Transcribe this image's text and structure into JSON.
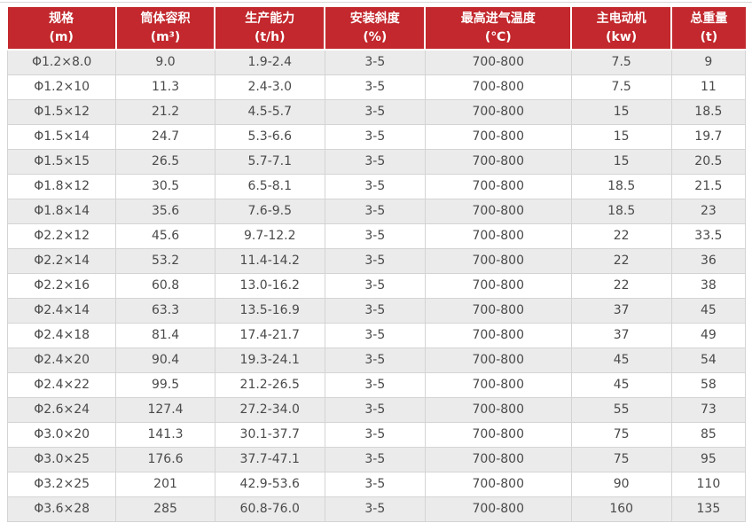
{
  "theme": {
    "header_bg": "#c2282d",
    "header_text": "#ffffff",
    "row_stripe": "#ebebeb",
    "row_plain": "#ffffff",
    "grid_line": "#d4d4d4",
    "body_text": "#4a4a4a",
    "top_divider": "#d8d8d8"
  },
  "chart_data": {
    "type": "table",
    "columns": [
      {
        "label": "规格",
        "unit": "(m)"
      },
      {
        "label": "筒体容积",
        "unit": "(m³)"
      },
      {
        "label": "生产能力",
        "unit": "(t/h)"
      },
      {
        "label": "安装斜度",
        "unit": "(%)"
      },
      {
        "label": "最高进气温度",
        "unit": "(℃)"
      },
      {
        "label": "主电动机",
        "unit": "(kw)"
      },
      {
        "label": "总重量",
        "unit": "(t)"
      }
    ],
    "rows": [
      [
        "Φ1.2×8.0",
        "9.0",
        "1.9-2.4",
        "3-5",
        "700-800",
        "7.5",
        "9"
      ],
      [
        "Φ1.2×10",
        "11.3",
        "2.4-3.0",
        "3-5",
        "700-800",
        "7.5",
        "11"
      ],
      [
        "Φ1.5×12",
        "21.2",
        "4.5-5.7",
        "3-5",
        "700-800",
        "15",
        "18.5"
      ],
      [
        "Φ1.5×14",
        "24.7",
        "5.3-6.6",
        "3-5",
        "700-800",
        "15",
        "19.7"
      ],
      [
        "Φ1.5×15",
        "26.5",
        "5.7-7.1",
        "3-5",
        "700-800",
        "15",
        "20.5"
      ],
      [
        "Φ1.8×12",
        "30.5",
        "6.5-8.1",
        "3-5",
        "700-800",
        "18.5",
        "21.5"
      ],
      [
        "Φ1.8×14",
        "35.6",
        "7.6-9.5",
        "3-5",
        "700-800",
        "18.5",
        "23"
      ],
      [
        "Φ2.2×12",
        "45.6",
        "9.7-12.2",
        "3-5",
        "700-800",
        "22",
        "33.5"
      ],
      [
        "Φ2.2×14",
        "53.2",
        "11.4-14.2",
        "3-5",
        "700-800",
        "22",
        "36"
      ],
      [
        "Φ2.2×16",
        "60.8",
        "13.0-16.2",
        "3-5",
        "700-800",
        "22",
        "38"
      ],
      [
        "Φ2.4×14",
        "63.3",
        "13.5-16.9",
        "3-5",
        "700-800",
        "37",
        "45"
      ],
      [
        "Φ2.4×18",
        "81.4",
        "17.4-21.7",
        "3-5",
        "700-800",
        "37",
        "49"
      ],
      [
        "Φ2.4×20",
        "90.4",
        "19.3-24.1",
        "3-5",
        "700-800",
        "45",
        "54"
      ],
      [
        "Φ2.4×22",
        "99.5",
        "21.2-26.5",
        "3-5",
        "700-800",
        "45",
        "58"
      ],
      [
        "Φ2.6×24",
        "127.4",
        "27.2-34.0",
        "3-5",
        "700-800",
        "55",
        "73"
      ],
      [
        "Φ3.0×20",
        "141.3",
        "30.1-37.7",
        "3-5",
        "700-800",
        "75",
        "85"
      ],
      [
        "Φ3.0×25",
        "176.6",
        "37.7-47.1",
        "3-5",
        "700-800",
        "75",
        "95"
      ],
      [
        "Φ3.2×25",
        "201",
        "42.9-53.6",
        "3-5",
        "700-800",
        "90",
        "110"
      ],
      [
        "Φ3.6×28",
        "285",
        "60.8-76.0",
        "3-5",
        "700-800",
        "160",
        "135"
      ]
    ]
  }
}
